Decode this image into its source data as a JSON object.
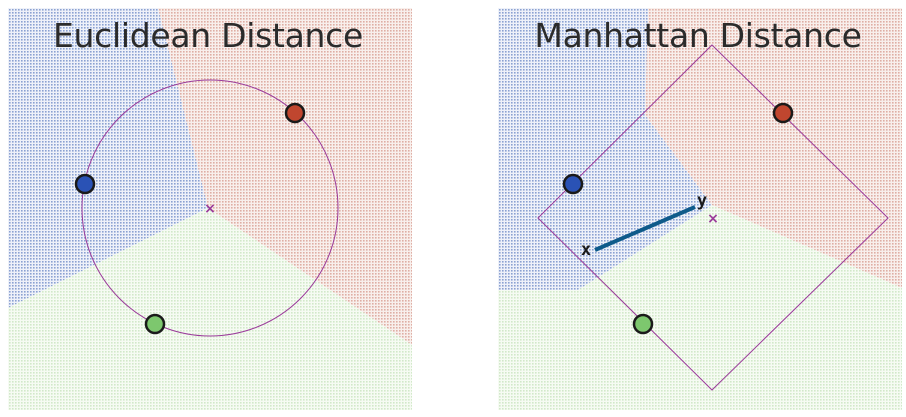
{
  "panels": [
    {
      "title": "Euclidean Distance",
      "metric": "euclidean",
      "colors": {
        "blue_region": "#3a5fb0",
        "red_region": "#c0604c",
        "green_region": "#8ec47a"
      },
      "points": [
        {
          "class": "red",
          "color": "#c0462f"
        },
        {
          "class": "blue",
          "color": "#2a52b5"
        },
        {
          "class": "green",
          "color": "#7dc76e"
        }
      ],
      "query_marker": "×",
      "boundary_shape": "circle"
    },
    {
      "title": "Manhattan Distance",
      "metric": "manhattan",
      "colors": {
        "blue_region": "#3a5fb0",
        "red_region": "#c0604c",
        "green_region": "#8ec47a"
      },
      "points": [
        {
          "class": "red",
          "color": "#c0462f"
        },
        {
          "class": "blue",
          "color": "#2a52b5"
        },
        {
          "class": "green",
          "color": "#7dc76e"
        }
      ],
      "query_marker": "×",
      "boundary_shape": "diamond",
      "segment": {
        "start_label": "x",
        "end_label": "y",
        "color": "#0e5a8a"
      }
    }
  ]
}
